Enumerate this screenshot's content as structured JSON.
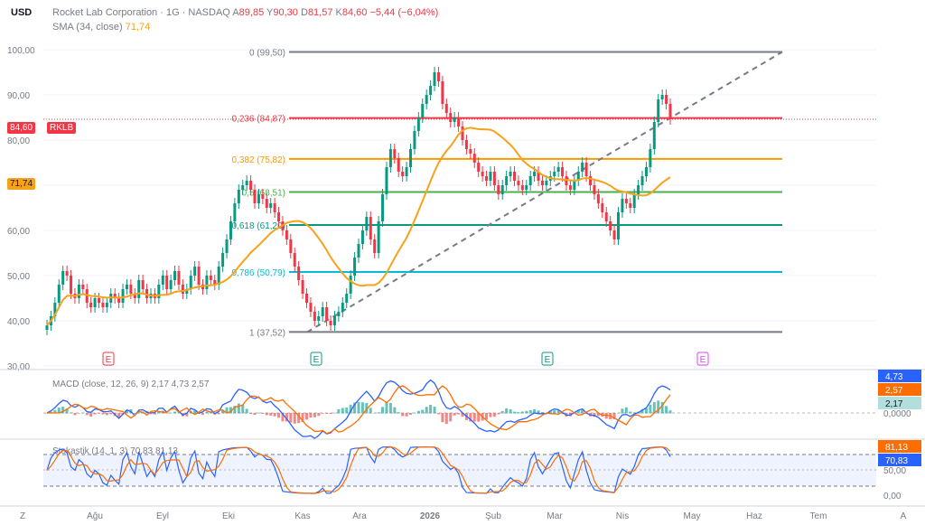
{
  "header": {
    "currency": "USD",
    "symbol_line": "Rocket Lab Corporation · 1G · NASDAQ",
    "open_label": "A",
    "open": "89,85",
    "high_label": "Y",
    "high": "90,30",
    "low_label": "D",
    "low": "81,57",
    "close_label": "K",
    "close": "84,60",
    "change": "−5,44 (−6,04%)",
    "sma_label": "SMA (34, close)",
    "sma_value": "71,74"
  },
  "price_tags": {
    "last": "84,60",
    "ticker": "RKLB",
    "sma": "71,74"
  },
  "colors": {
    "up": "#089981",
    "down": "#f23645",
    "sma": "#f7a21b",
    "macd": "#2962ff",
    "signal": "#ff6d00",
    "stoch_k": "#2962ff",
    "stoch_d": "#ff6d00",
    "fib_0": "#787b86",
    "fib_236": "#f23645",
    "fib_382": "#ff9800",
    "fib_5": "#4caf50",
    "fib_618": "#089981",
    "fib_786": "#00bcd4",
    "fib_1": "#787b86"
  },
  "chart_data": {
    "type": "candlestick",
    "y_ticks": [
      "100,00",
      "90,00",
      "80,00",
      "70,00",
      "60,00",
      "50,00",
      "40,00",
      "30,00"
    ],
    "ylim": [
      30,
      102
    ],
    "x_ticks": [
      "Z",
      "Ağu",
      "Eyl",
      "Eki",
      "Kas",
      "Ara",
      "2026",
      "Şub",
      "Mar",
      "Nis",
      "May",
      "Haz",
      "Tem",
      "A"
    ],
    "fibonacci": [
      {
        "label": "0 (99,50)",
        "value": 99.5
      },
      {
        "label": "0,236 (84,87)",
        "value": 84.87
      },
      {
        "label": "0,382 (75,82)",
        "value": 75.82
      },
      {
        "label": "0,5 (68,51)",
        "value": 68.51
      },
      {
        "label": "0,618 (61,20)",
        "value": 61.2
      },
      {
        "label": "0,786 (50,79)",
        "value": 50.79
      },
      {
        "label": "1 (37,52)",
        "value": 37.52
      }
    ],
    "trendline": {
      "from": 37.5,
      "to": 99.5
    },
    "earnings_markers": [
      "E",
      "E",
      "E",
      "E"
    ],
    "close_series": [
      39,
      41,
      44,
      48,
      51,
      50,
      46,
      45,
      48,
      47,
      44,
      43,
      45,
      44,
      43,
      44,
      46,
      45,
      44,
      47,
      48,
      46,
      45,
      49,
      47,
      45,
      46,
      45,
      48,
      50,
      47,
      49,
      51,
      48,
      46,
      47,
      50,
      52,
      48,
      47,
      50,
      49,
      48,
      52,
      55,
      58,
      62,
      66,
      69,
      70,
      71,
      69,
      66,
      68,
      67,
      65,
      66,
      64,
      62,
      60,
      58,
      55,
      52,
      49,
      46,
      44,
      42,
      40,
      41,
      43,
      40,
      39,
      41,
      42,
      44,
      46,
      50,
      54,
      57,
      60,
      63,
      58,
      55,
      62,
      68,
      74,
      78,
      76,
      73,
      72,
      74,
      78,
      82,
      85,
      88,
      90,
      92,
      95,
      93,
      88,
      86,
      84,
      85,
      83,
      80,
      78,
      77,
      75,
      73,
      72,
      71,
      73,
      70,
      68,
      70,
      72,
      73,
      71,
      70,
      69,
      70,
      72,
      73,
      71,
      70,
      71,
      72,
      73,
      74,
      72,
      70,
      69,
      71,
      73,
      75,
      72,
      70,
      68,
      66,
      64,
      62,
      60,
      58,
      64,
      67,
      66,
      65,
      68,
      70,
      72,
      74,
      78,
      84,
      89,
      90,
      88,
      84.6
    ],
    "sma_label_value": "71,74",
    "macd": {
      "label": "MACD (close, 12, 26, 9)",
      "hist": "2,17",
      "macd": "4,73",
      "signal": "2,57",
      "axis_tags": [
        "4,73",
        "2,57",
        "2,17",
        "0,0000"
      ]
    },
    "stochastic": {
      "label": "Stokastik (14, 1, 3)",
      "k": "70,83",
      "d": "81,13",
      "axis_ticks": [
        "50,00",
        "0,00"
      ],
      "axis_tags": [
        "81,13",
        "70,83"
      ]
    }
  }
}
